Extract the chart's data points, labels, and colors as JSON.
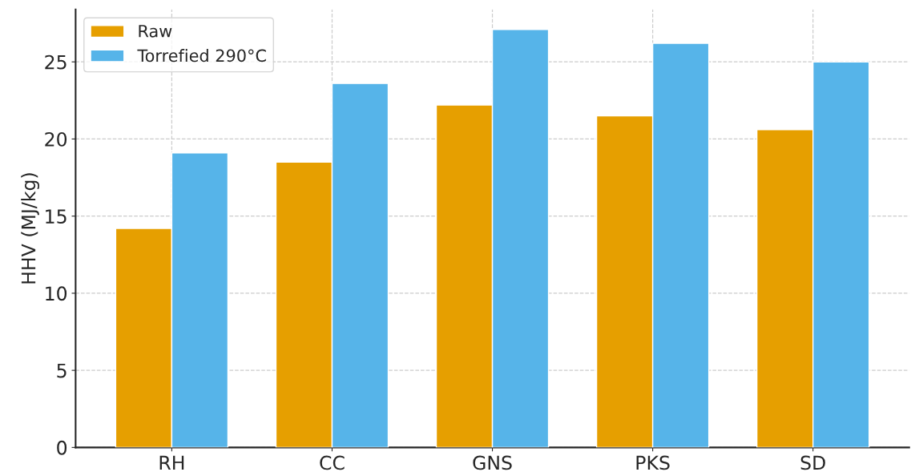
{
  "chart_data": {
    "type": "bar",
    "ylabel": "HHV (MJ/kg)",
    "categories": [
      "RH",
      "CC",
      "GNS",
      "PKS",
      "SD"
    ],
    "series": [
      {
        "name": "Raw",
        "color": "#e69f00",
        "values": [
          14.2,
          18.5,
          22.2,
          21.5,
          20.6
        ]
      },
      {
        "name": "Torrefied 290°C",
        "color": "#56b4e9",
        "values": [
          19.1,
          23.6,
          27.1,
          26.2,
          25.0
        ]
      }
    ],
    "ylim": [
      0,
      28.4
    ],
    "yticks": [
      0,
      5,
      10,
      15,
      20,
      25
    ],
    "grid": true,
    "legend": "top left"
  }
}
